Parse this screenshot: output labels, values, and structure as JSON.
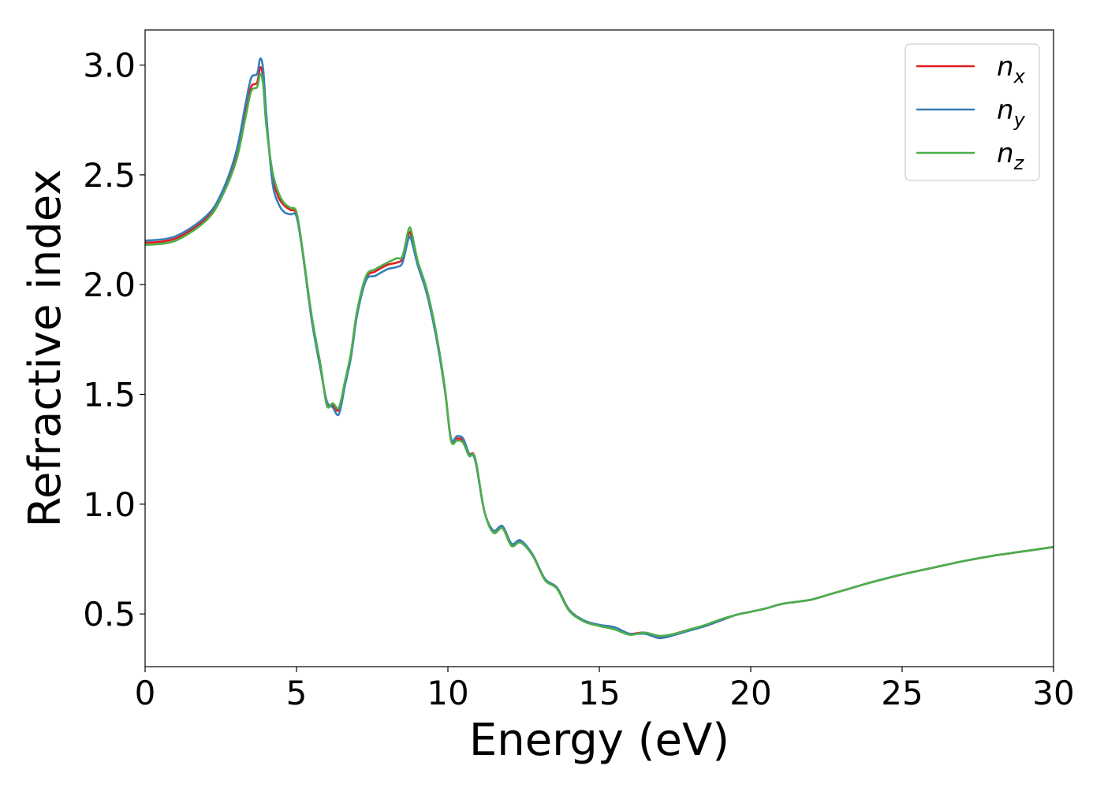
{
  "chart_data": {
    "type": "line",
    "xlabel": "Energy (eV)",
    "ylabel": "Refractive index",
    "xlim": [
      0,
      30
    ],
    "ylim": [
      0.26,
      3.16
    ],
    "xticks": [
      0,
      5,
      10,
      15,
      20,
      25,
      30
    ],
    "xtick_labels": [
      "0",
      "5",
      "10",
      "15",
      "20",
      "25",
      "30"
    ],
    "yticks": [
      0.5,
      1.0,
      1.5,
      2.0,
      2.5,
      3.0
    ],
    "ytick_labels": [
      "0.5",
      "1.0",
      "1.5",
      "2.0",
      "2.5",
      "3.0"
    ],
    "grid": false,
    "legend_position": "top-right",
    "x": [
      0,
      1,
      2,
      2.5,
      3,
      3.3,
      3.5,
      3.7,
      3.8,
      3.9,
      4.0,
      4.2,
      4.4,
      4.6,
      4.8,
      5.0,
      5.2,
      5.5,
      5.8,
      6.0,
      6.2,
      6.4,
      6.6,
      6.8,
      7.0,
      7.3,
      7.6,
      8.0,
      8.3,
      8.5,
      8.7,
      8.8,
      9.0,
      9.3,
      9.6,
      9.9,
      10.1,
      10.3,
      10.5,
      10.7,
      10.9,
      11.2,
      11.5,
      11.8,
      12.1,
      12.4,
      12.8,
      13.2,
      13.6,
      14.0,
      14.5,
      15.0,
      15.5,
      16.0,
      16.5,
      17.0,
      17.5,
      18.0,
      18.5,
      19.0,
      19.5,
      20.0,
      20.5,
      21.0,
      21.5,
      22.0,
      22.5,
      23.0,
      23.5,
      24.0,
      25.0,
      26.0,
      27.0,
      28.0,
      29.0,
      30.0
    ],
    "series": [
      {
        "name": "n",
        "subscript": "x",
        "color": "#e41a1c",
        "values": [
          2.19,
          2.21,
          2.3,
          2.4,
          2.58,
          2.78,
          2.9,
          2.92,
          2.99,
          2.94,
          2.75,
          2.5,
          2.4,
          2.36,
          2.34,
          2.32,
          2.15,
          1.85,
          1.62,
          1.46,
          1.45,
          1.43,
          1.55,
          1.68,
          1.87,
          2.03,
          2.06,
          2.09,
          2.1,
          2.12,
          2.23,
          2.22,
          2.1,
          1.97,
          1.78,
          1.52,
          1.3,
          1.3,
          1.29,
          1.23,
          1.21,
          0.97,
          0.88,
          0.9,
          0.82,
          0.83,
          0.77,
          0.66,
          0.62,
          0.52,
          0.47,
          0.45,
          0.43,
          0.41,
          0.415,
          0.395,
          0.41,
          0.43,
          0.445,
          0.47,
          0.495,
          0.51,
          0.525,
          0.545,
          0.555,
          0.565,
          0.585,
          0.605,
          0.625,
          0.645,
          0.68,
          0.71,
          0.74,
          0.765,
          0.785,
          0.805
        ]
      },
      {
        "name": "n",
        "subscript": "y",
        "color": "#377eb8",
        "values": [
          2.2,
          2.22,
          2.31,
          2.41,
          2.6,
          2.81,
          2.94,
          2.96,
          3.03,
          2.98,
          2.78,
          2.47,
          2.37,
          2.33,
          2.32,
          2.31,
          2.15,
          1.84,
          1.61,
          1.47,
          1.44,
          1.41,
          1.54,
          1.67,
          1.86,
          2.02,
          2.04,
          2.07,
          2.08,
          2.1,
          2.21,
          2.2,
          2.09,
          1.96,
          1.77,
          1.52,
          1.3,
          1.31,
          1.3,
          1.23,
          1.2,
          0.97,
          0.88,
          0.9,
          0.82,
          0.835,
          0.77,
          0.66,
          0.62,
          0.52,
          0.47,
          0.45,
          0.44,
          0.41,
          0.41,
          0.39,
          0.405,
          0.425,
          0.445,
          0.47,
          0.495,
          0.51,
          0.525,
          0.545,
          0.555,
          0.565,
          0.585,
          0.605,
          0.625,
          0.645,
          0.68,
          0.71,
          0.74,
          0.765,
          0.785,
          0.805
        ]
      },
      {
        "name": "n",
        "subscript": "z",
        "color": "#4daf4a",
        "values": [
          2.18,
          2.2,
          2.29,
          2.39,
          2.56,
          2.75,
          2.88,
          2.9,
          2.96,
          2.91,
          2.73,
          2.52,
          2.42,
          2.37,
          2.35,
          2.33,
          2.16,
          1.86,
          1.63,
          1.45,
          1.46,
          1.44,
          1.56,
          1.69,
          1.88,
          2.04,
          2.07,
          2.1,
          2.12,
          2.13,
          2.25,
          2.24,
          2.11,
          1.98,
          1.79,
          1.53,
          1.29,
          1.29,
          1.28,
          1.22,
          1.21,
          0.97,
          0.87,
          0.89,
          0.81,
          0.825,
          0.765,
          0.655,
          0.615,
          0.515,
          0.465,
          0.445,
          0.43,
          0.405,
          0.415,
          0.4,
          0.41,
          0.43,
          0.45,
          0.475,
          0.495,
          0.51,
          0.525,
          0.545,
          0.555,
          0.565,
          0.585,
          0.605,
          0.625,
          0.645,
          0.68,
          0.71,
          0.74,
          0.765,
          0.785,
          0.805
        ]
      }
    ]
  }
}
